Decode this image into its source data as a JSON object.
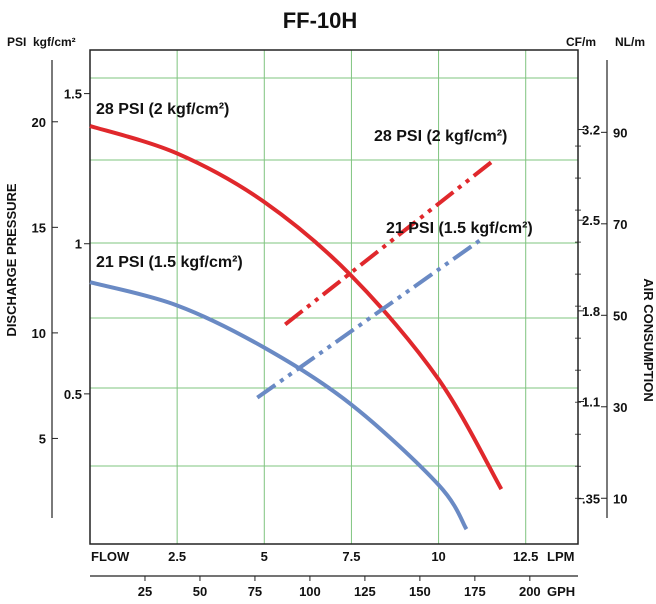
{
  "chart_data": {
    "type": "line",
    "title": "FF-10H",
    "ylabel": "DISCHARGE PRESSURE",
    "y2label": "AIR CONSUMPTION",
    "units": {
      "psi": "PSI",
      "kgf": "kgf/cm²",
      "cfm": "CF/m",
      "nlm": "NL/m",
      "lpm": "LPM",
      "gph": "GPH",
      "flow": "FLOW"
    },
    "xlim_lpm": [
      0,
      14
    ],
    "ylim_psi": [
      0,
      23.4
    ],
    "y2lim_nlm": [
      0,
      108
    ],
    "grid": true,
    "x_ticks_lpm": [
      "2.5",
      "5",
      "7.5",
      "10",
      "12.5"
    ],
    "x_ticks_gph": [
      "25",
      "50",
      "75",
      "100",
      "125",
      "150",
      "175",
      "200"
    ],
    "y_ticks_psi": [
      "5",
      "10",
      "15",
      "20"
    ],
    "y_ticks_kgf": [
      "0.5",
      "1",
      "1.5"
    ],
    "y2_ticks_cfm": [
      ".35",
      "1.1",
      "1.8",
      "2.5",
      "3.2"
    ],
    "y2_ticks_nlm": [
      "10",
      "30",
      "50",
      "70",
      "90"
    ],
    "series": [
      {
        "name": "28 PSI (2 kgf/cm²)",
        "kind": "discharge pressure",
        "axis": "psi",
        "color": "#e0282c",
        "dash": "solid",
        "x": [
          0,
          2.5,
          5,
          7.5,
          10,
          11.8
        ],
        "y": [
          19.8,
          18.5,
          16.2,
          12.7,
          7.8,
          2.6
        ]
      },
      {
        "name": "21 PSI (1.5 kgf/cm²)",
        "kind": "discharge pressure",
        "axis": "psi",
        "color": "#6a8ac4",
        "dash": "solid",
        "x": [
          0,
          2.5,
          5,
          7.5,
          10,
          10.8
        ],
        "y": [
          12.4,
          11.3,
          9.3,
          6.6,
          2.8,
          0.7
        ]
      },
      {
        "name": "28 PSI (2 kgf/cm²)",
        "kind": "air consumption",
        "axis": "nlm",
        "color": "#e0282c",
        "dash": "dash-dot",
        "x": [
          5.6,
          11.6
        ],
        "y": [
          48,
          84
        ]
      },
      {
        "name": "21 PSI (1.5 kgf/cm²)",
        "kind": "air consumption",
        "axis": "nlm",
        "color": "#6a8ac4",
        "dash": "dash-dot",
        "x": [
          4.8,
          11.3
        ],
        "y": [
          32,
          67
        ]
      }
    ]
  }
}
